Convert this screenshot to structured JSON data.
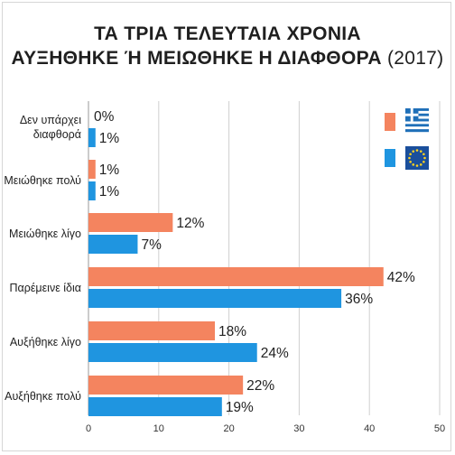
{
  "chart_data": {
    "type": "bar",
    "orientation": "horizontal",
    "title_line1": "ΤΑ ΤΡΙΑ ΤΕΛΕΥΤΑΙΑ ΧΡΟΝΙΑ",
    "title_line2": "ΑΥΞΗΘΗΚΕ Ή ΜΕΙΩΘΗΚΕ Η ΔΙΑΦΘΟΡΑ",
    "title_year": "(2017)",
    "categories": [
      [
        "Δεν υπάρχει",
        "διαφθορά"
      ],
      [
        "Μειώθηκε πολύ"
      ],
      [
        "Μειώθηκε λίγο"
      ],
      [
        "Παρέμεινε ίδια"
      ],
      [
        "Αυξήθηκε λίγο"
      ],
      [
        "Αυξήθηκε πολύ"
      ]
    ],
    "series": [
      {
        "legend_icon": "greece-flag-icon",
        "color": "#f4845f",
        "values": [
          0,
          1,
          12,
          42,
          18,
          22
        ]
      },
      {
        "legend_icon": "eu-flag-icon",
        "color": "#1f95e0",
        "values": [
          1,
          1,
          7,
          36,
          24,
          19
        ]
      }
    ],
    "value_suffix": "%",
    "xlim": [
      0,
      50
    ],
    "xticks": [
      0,
      10,
      20,
      30,
      40,
      50
    ],
    "grid": true,
    "legend_placement": "top-right"
  }
}
